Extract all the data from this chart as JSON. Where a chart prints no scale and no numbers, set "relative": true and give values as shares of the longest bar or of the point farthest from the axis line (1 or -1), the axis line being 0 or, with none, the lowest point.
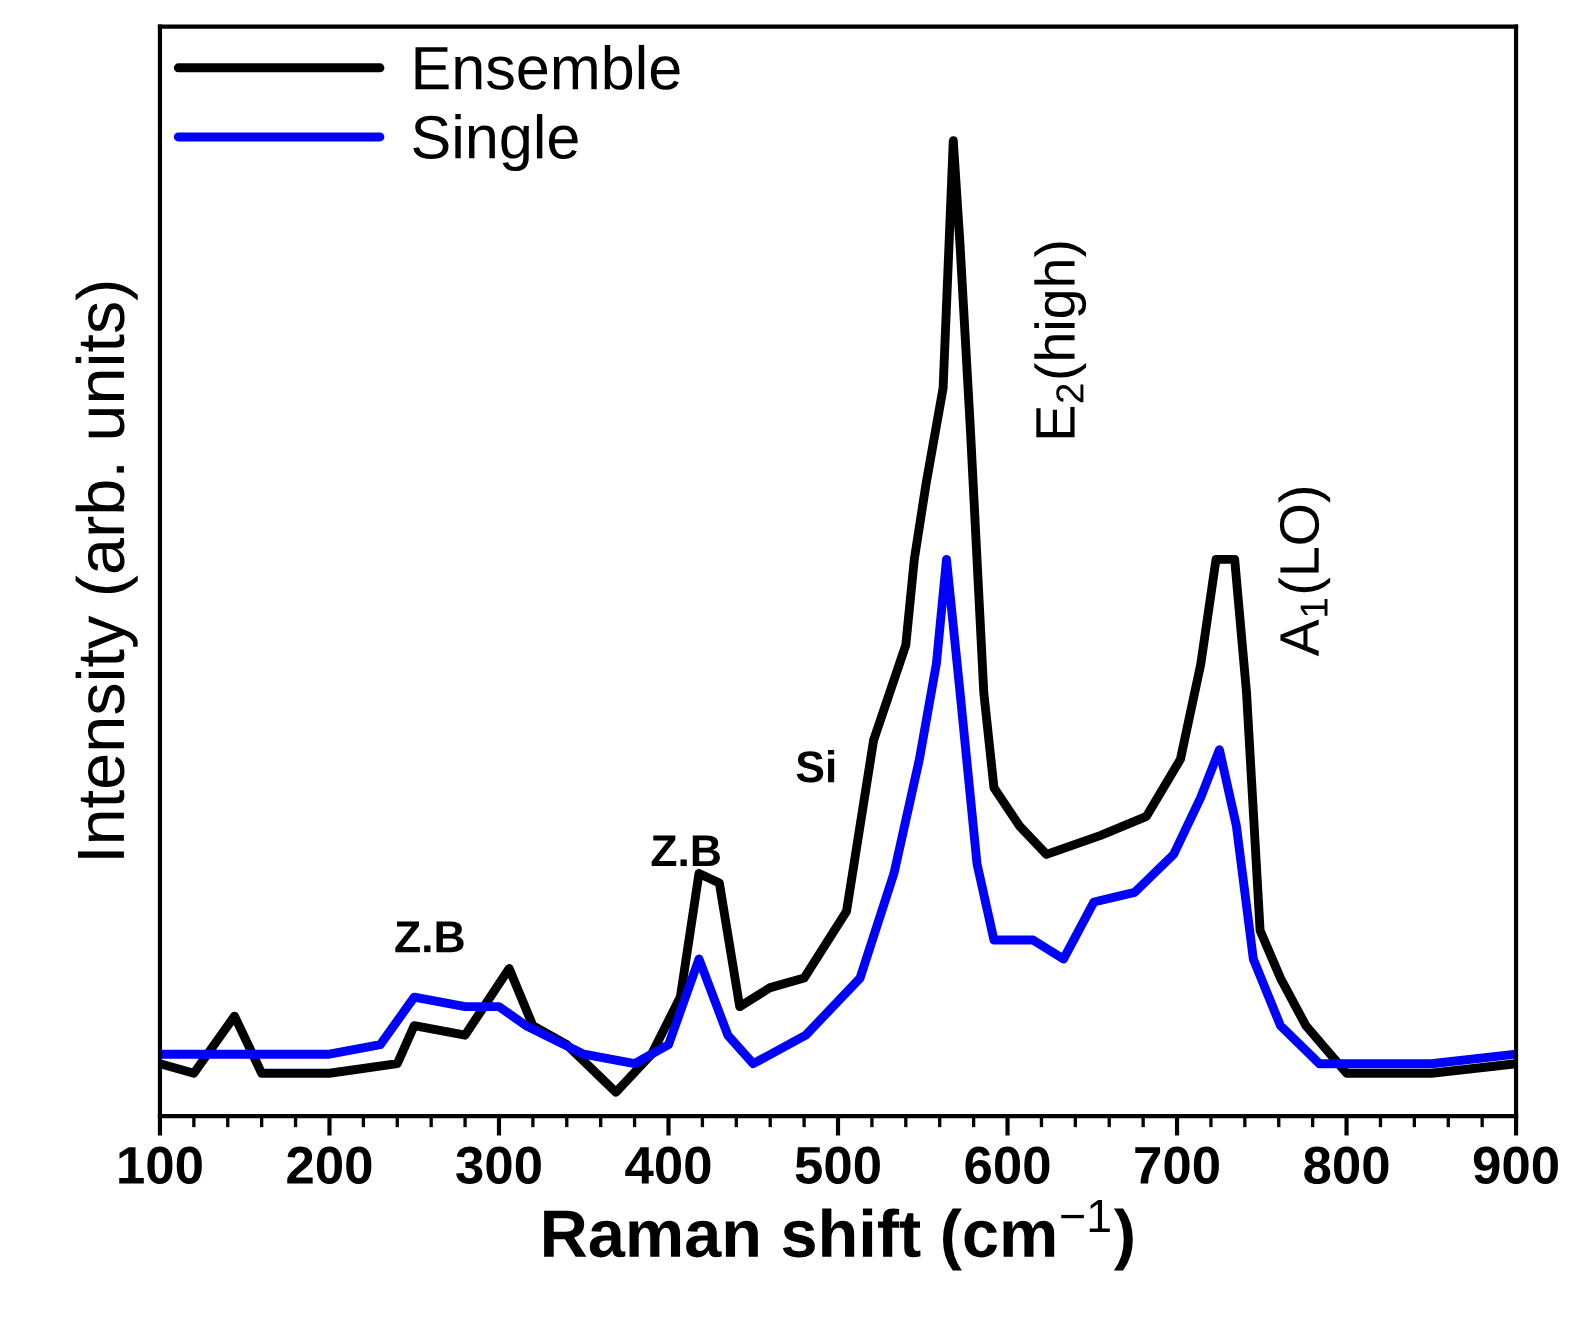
{
  "chart_data": {
    "type": "line",
    "xlabel": "Raman shift (cm$^{−1}$)",
    "ylabel": "Intensity (arb. units)",
    "relative": true,
    "xlim": [
      100,
      900
    ],
    "xticks": [
      100,
      200,
      300,
      400,
      500,
      600,
      700,
      800,
      900
    ],
    "legend": "top left",
    "grid": false,
    "marker": "none",
    "line_style": "solid",
    "series": [
      {
        "name": "Ensemble",
        "color": "#000000",
        "x": [
          100,
          120,
          144,
          160,
          200,
          240,
          250,
          280,
          306,
          320,
          340,
          369,
          390,
          407,
          418,
          430,
          442,
          460,
          480,
          505,
          521,
          540,
          545,
          552,
          562,
          568,
          572,
          578,
          586,
          592,
          607,
          623,
          655,
          682,
          702,
          714,
          723,
          734,
          741,
          749,
          761,
          776,
          800,
          850,
          900
        ],
        "values": [
          0.03,
          0.02,
          0.08,
          0.02,
          0.02,
          0.03,
          0.07,
          0.06,
          0.13,
          0.07,
          0.05,
          0.0,
          0.04,
          0.1,
          0.23,
          0.22,
          0.09,
          0.11,
          0.12,
          0.19,
          0.37,
          0.47,
          0.56,
          0.64,
          0.74,
          1.0,
          0.89,
          0.7,
          0.42,
          0.32,
          0.28,
          0.25,
          0.27,
          0.29,
          0.35,
          0.45,
          0.56,
          0.56,
          0.42,
          0.17,
          0.12,
          0.07,
          0.02,
          0.02,
          0.03
        ]
      },
      {
        "name": "Single",
        "color": "#0000ff",
        "x": [
          100,
          150,
          200,
          230,
          250,
          280,
          300,
          316,
          350,
          380,
          400,
          418,
          435,
          450,
          481,
          513,
          533,
          548,
          558,
          564,
          572,
          582,
          592,
          615,
          633,
          651,
          675,
          698,
          714,
          725,
          735,
          745,
          761,
          784,
          850,
          900
        ],
        "values": [
          0.04,
          0.04,
          0.04,
          0.05,
          0.1,
          0.09,
          0.09,
          0.07,
          0.04,
          0.03,
          0.05,
          0.14,
          0.06,
          0.03,
          0.06,
          0.12,
          0.23,
          0.35,
          0.45,
          0.56,
          0.42,
          0.24,
          0.16,
          0.16,
          0.14,
          0.2,
          0.21,
          0.25,
          0.31,
          0.36,
          0.28,
          0.14,
          0.07,
          0.03,
          0.03,
          0.04
        ]
      }
    ],
    "annotations": [
      "Z.B",
      "Z.B",
      "Si",
      "E$_{2}$(high)",
      "A$_{1}$(LO)"
    ]
  }
}
